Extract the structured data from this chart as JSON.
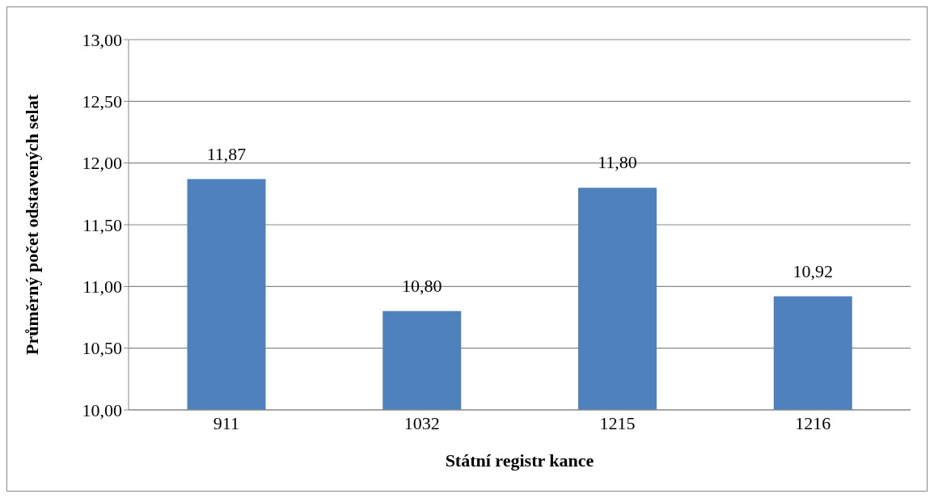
{
  "chart_data": {
    "type": "bar",
    "xlabel": "Státní registr kance",
    "ylabel": "Průměrný počet odstavených selat",
    "categories": [
      "911",
      "1032",
      "1215",
      "1216"
    ],
    "values": [
      11.87,
      10.8,
      11.8,
      10.92
    ],
    "value_labels": [
      "11,87",
      "10,80",
      "11,80",
      "10,92"
    ],
    "color": "#4f81bd",
    "ylim": [
      10,
      13
    ],
    "yticks": [
      {
        "value": 10,
        "label": "10,00"
      },
      {
        "value": 10.5,
        "label": "10,50"
      },
      {
        "value": 11,
        "label": "11,00"
      },
      {
        "value": 11.5,
        "label": "11,50"
      },
      {
        "value": 12,
        "label": "12,00"
      },
      {
        "value": 12.5,
        "label": "12,50"
      },
      {
        "value": 13,
        "label": "13,00"
      }
    ],
    "grid": "y",
    "legend": false
  }
}
